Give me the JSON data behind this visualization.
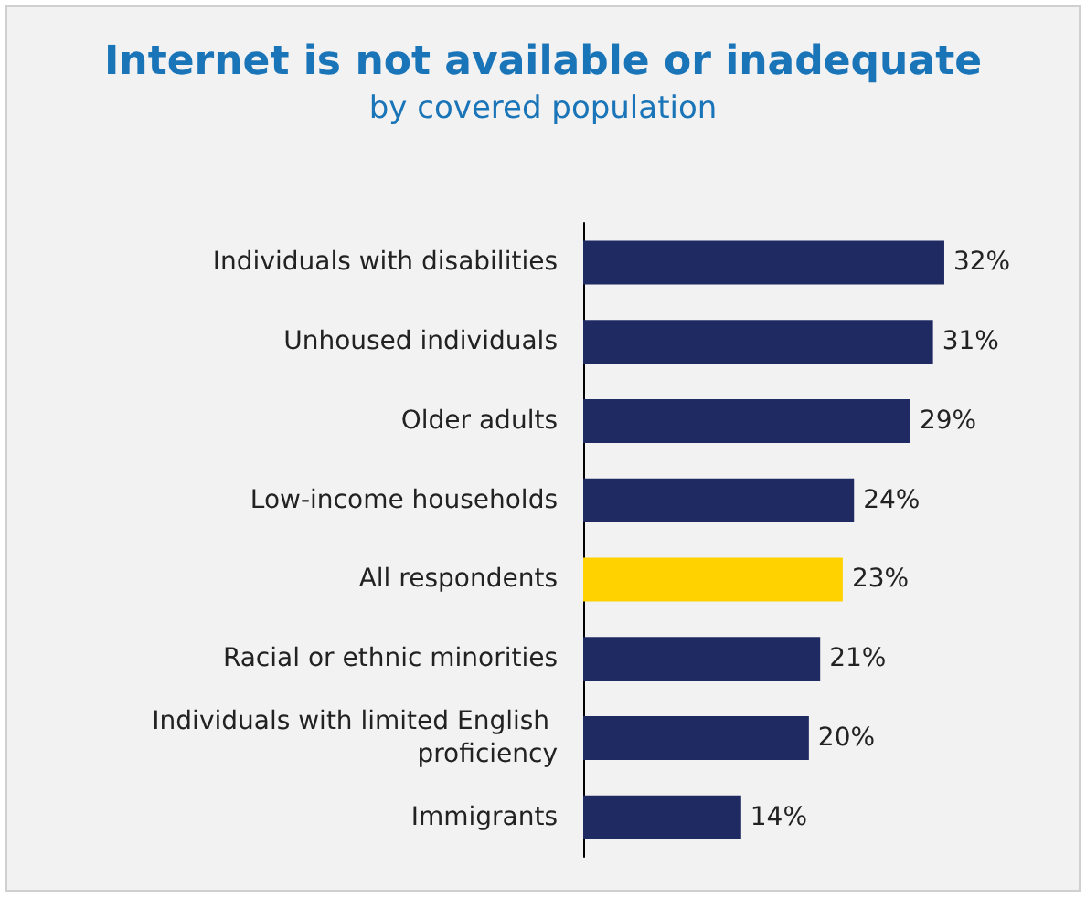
{
  "chart_data": {
    "type": "bar",
    "orientation": "horizontal",
    "title": "Internet is not available or inadequate",
    "subtitle": "by covered population",
    "categories": [
      "Individuals with disabilities",
      "Unhoused individuals",
      "Older adults",
      "Low-income households",
      "All respondents",
      "Racial or ethnic minorities",
      "Individuals with limited English proficiency",
      "Immigrants"
    ],
    "values": [
      32,
      31,
      29,
      24,
      23,
      21,
      20,
      14
    ],
    "colors": [
      "#1f2a63",
      "#1f2a63",
      "#1f2a63",
      "#1f2a63",
      "#ffd200",
      "#1f2a63",
      "#1f2a63",
      "#1f2a63"
    ],
    "value_labels": [
      "32%",
      "31%",
      "29%",
      "24%",
      "23%",
      "21%",
      "20%",
      "14%"
    ]
  }
}
